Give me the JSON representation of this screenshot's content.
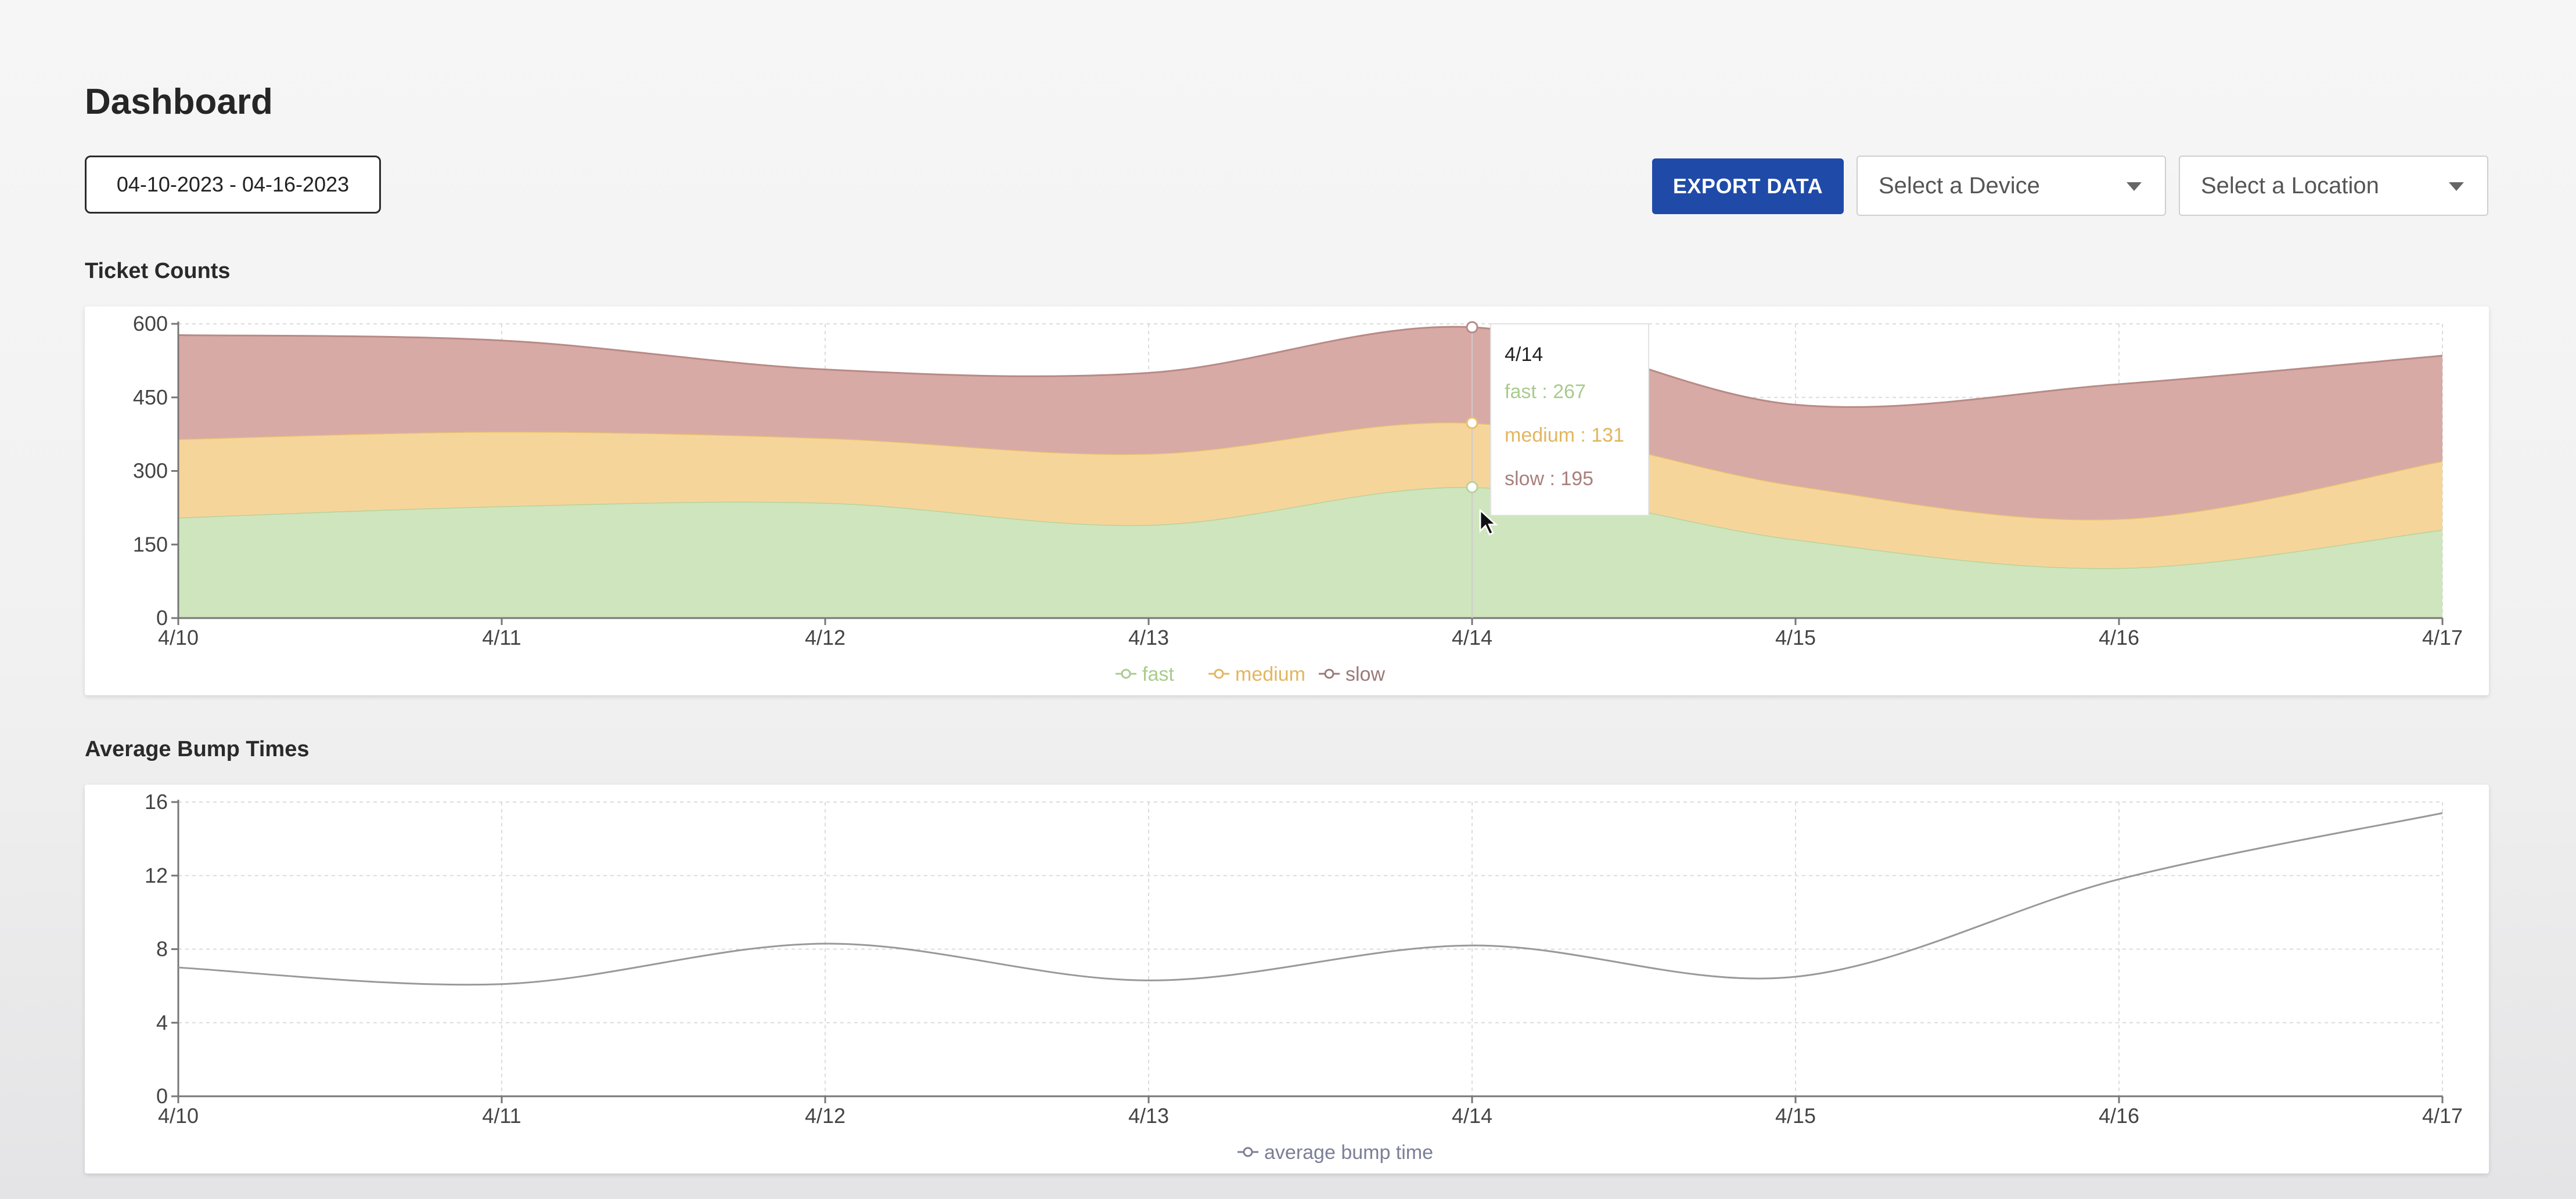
{
  "page": {
    "title": "Dashboard"
  },
  "toolbar": {
    "date_range": "04-10-2023 - 04-16-2023",
    "export_label": "EXPORT DATA",
    "device_placeholder": "Select a Device",
    "location_placeholder": "Select a Location"
  },
  "colors": {
    "fast": "#cfe5bd",
    "fast_line": "#b6d39c",
    "medium": "#f6d59a",
    "medium_line": "#e8c070",
    "slow": "#d8aaa6",
    "slow_line": "#b88a86",
    "avg_line": "#999999",
    "export_button": "#1f4aa8"
  },
  "tooltip": {
    "title": "4/14",
    "fast": "fast : 267",
    "medium": "medium : 131",
    "slow": "slow : 195"
  },
  "chart_data": [
    {
      "type": "area",
      "title": "Ticket Counts",
      "stacked": true,
      "categories": [
        "4/10",
        "4/11",
        "4/12",
        "4/13",
        "4/14",
        "4/15",
        "4/16",
        "4/17"
      ],
      "series": [
        {
          "name": "fast",
          "values": [
            205,
            228,
            235,
            190,
            267,
            160,
            102,
            180
          ]
        },
        {
          "name": "medium",
          "values": [
            160,
            152,
            132,
            145,
            131,
            110,
            100,
            140
          ]
        },
        {
          "name": "slow",
          "values": [
            212,
            186,
            140,
            165,
            195,
            165,
            275,
            215
          ]
        }
      ],
      "ylim": [
        0,
        600
      ],
      "yticks": [
        0,
        150,
        300,
        450,
        600
      ],
      "grid": true,
      "legend": "bottom-center",
      "highlight_category": "4/14"
    },
    {
      "type": "line",
      "title": "Average Bump Times",
      "categories": [
        "4/10",
        "4/11",
        "4/12",
        "4/13",
        "4/14",
        "4/15",
        "4/16",
        "4/17"
      ],
      "series": [
        {
          "name": "average bump time",
          "values": [
            7.0,
            6.1,
            8.3,
            6.3,
            8.2,
            6.5,
            11.8,
            15.4
          ]
        }
      ],
      "ylim": [
        0,
        16
      ],
      "yticks": [
        0,
        4,
        8,
        12,
        16
      ],
      "grid": true,
      "legend": "bottom-center"
    }
  ]
}
